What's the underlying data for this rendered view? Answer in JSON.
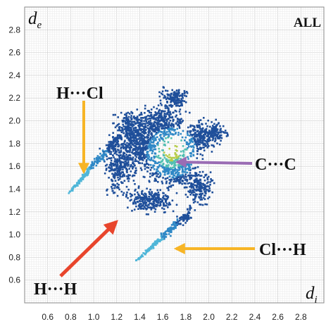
{
  "chart_data": {
    "type": "scatter",
    "title": "ALL",
    "xlabel": {
      "symbol": "d",
      "subscript": "i"
    },
    "ylabel": {
      "symbol": "d",
      "subscript": "e"
    },
    "xlim": [
      0.4,
      3.0
    ],
    "ylim": [
      0.4,
      3.0
    ],
    "x_ticks": [
      "0.6",
      "0.8",
      "1.0",
      "1.2",
      "1.4",
      "1.6",
      "1.8",
      "2.0",
      "2.2",
      "2.4",
      "2.6",
      "2.8"
    ],
    "y_ticks": [
      "0.6",
      "0.8",
      "1.0",
      "1.2",
      "1.4",
      "1.6",
      "1.8",
      "2.0",
      "2.2",
      "2.4",
      "2.6",
      "2.8"
    ],
    "grid": true,
    "spikes": [
      {
        "from": [
          0.78,
          1.36
        ],
        "to": [
          1.22,
          1.86
        ]
      },
      {
        "from": [
          1.37,
          0.77
        ],
        "to": [
          1.86,
          1.22
        ]
      }
    ],
    "hotspot": [
      1.68,
      1.72
    ],
    "annotations": [
      {
        "label": "H···Cl",
        "points_to": [
          0.87,
          1.53
        ],
        "arrow_color": "#f7b526"
      },
      {
        "label": "C···C",
        "points_to": [
          1.68,
          1.68
        ],
        "arrow_color": "#9a6cb4"
      },
      {
        "label": "Cl···H",
        "points_to": [
          1.58,
          0.88
        ],
        "arrow_color": "#f7b526"
      },
      {
        "label": "H···H",
        "points_to": [
          1.22,
          1.18
        ],
        "arrow_color": "#e8452c"
      }
    ]
  }
}
